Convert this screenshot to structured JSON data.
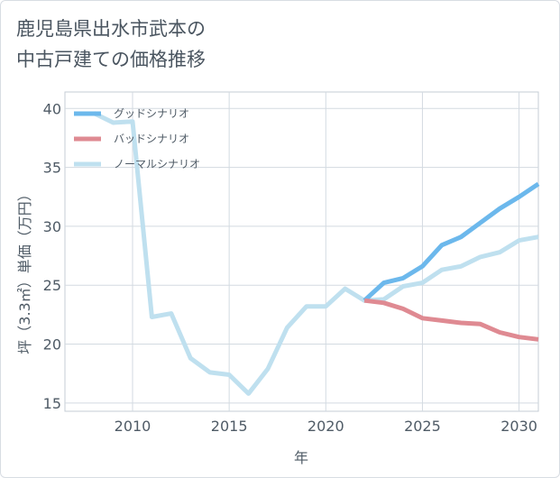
{
  "title_line1": "鹿児島県出水市武本の",
  "title_line2": "中古戸建ての価格推移",
  "chart_data": {
    "type": "line",
    "xlabel": "年",
    "ylabel": "坪（3.3㎡）単価（万円）",
    "xlim": [
      2006.5,
      2031
    ],
    "ylim": [
      14.3,
      41.4
    ],
    "x_ticks": [
      2010,
      2015,
      2020,
      2025,
      2030
    ],
    "y_ticks": [
      15,
      20,
      25,
      30,
      35,
      40
    ],
    "grid": true,
    "legend_position": "top-left",
    "series": [
      {
        "name": "グッドシナリオ",
        "color": "#6cb8ec",
        "x": [
          2022,
          2023,
          2024,
          2025,
          2026,
          2027,
          2028,
          2029,
          2030,
          2031
        ],
        "y": [
          23.7,
          25.2,
          25.6,
          26.6,
          28.4,
          29.1,
          30.3,
          31.5,
          32.5,
          33.6
        ]
      },
      {
        "name": "バッドシナリオ",
        "color": "#df8a92",
        "x": [
          2022,
          2023,
          2024,
          2025,
          2026,
          2027,
          2028,
          2029,
          2030,
          2031
        ],
        "y": [
          23.7,
          23.5,
          23.0,
          22.2,
          22.0,
          21.8,
          21.7,
          21.0,
          20.6,
          20.4
        ]
      },
      {
        "name": "ノーマルシナリオ",
        "color": "#bfe0ef",
        "x": [
          2008,
          2009,
          2010,
          2011,
          2012,
          2013,
          2014,
          2015,
          2016,
          2017,
          2018,
          2019,
          2020,
          2021,
          2022,
          2023,
          2024,
          2025,
          2026,
          2027,
          2028,
          2029,
          2030,
          2031
        ],
        "y": [
          39.6,
          38.8,
          38.9,
          22.3,
          22.6,
          18.8,
          17.6,
          17.4,
          15.8,
          17.9,
          21.4,
          23.2,
          23.2,
          24.7,
          23.7,
          23.8,
          24.9,
          25.2,
          26.3,
          26.6,
          27.4,
          27.8,
          28.8,
          29.1
        ]
      }
    ]
  }
}
